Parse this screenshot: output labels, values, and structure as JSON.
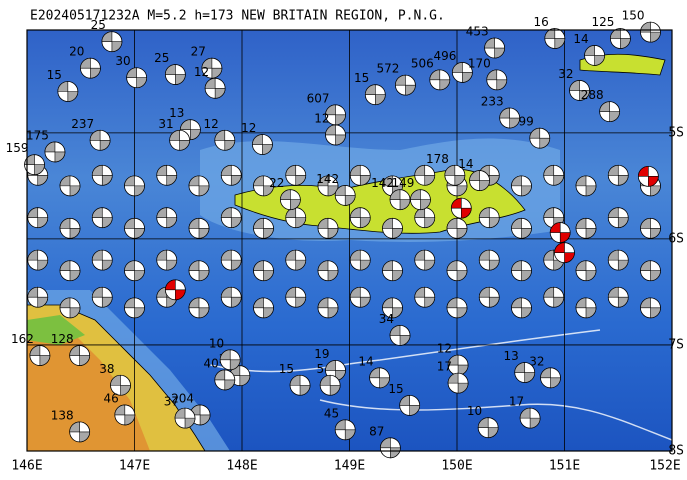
{
  "chart_data": {
    "type": "map",
    "title": "E202405171232A M=5.2 h=173 NEW BRITAIN REGION, P.N.G.",
    "xlim": [
      146,
      152
    ],
    "ylim": [
      -8,
      -4.03
    ],
    "xticks": [
      {
        "value": 146,
        "label": "146E"
      },
      {
        "value": 147,
        "label": "147E"
      },
      {
        "value": 148,
        "label": "148E"
      },
      {
        "value": 149,
        "label": "149E"
      },
      {
        "value": 150,
        "label": "150E"
      },
      {
        "value": 151,
        "label": "151E"
      },
      {
        "value": 152,
        "label": "152E"
      }
    ],
    "yticks": [
      {
        "value": -5,
        "label": "5S"
      },
      {
        "value": -6,
        "label": "6S"
      },
      {
        "value": -7,
        "label": "7S"
      },
      {
        "value": -8,
        "label": "8S"
      }
    ],
    "grid": true,
    "events": {
      "color": "#a8a8a8",
      "lon": [
        146.79,
        146.59,
        147.02,
        147.38,
        147.72,
        147.75,
        146.38,
        146.68,
        146.26,
        146.07,
        147.52,
        147.42,
        147.84,
        148.19,
        148.87,
        148.87,
        149.24,
        149.52,
        149.84,
        150.05,
        150.35,
        150.37,
        150.49,
        150.77,
        151.14,
        151.42,
        151.28,
        149.98,
        150.21,
        149.47,
        149.66,
        148.96,
        148.45,
        146.49,
        146.12,
        146.87,
        147.98,
        147.89,
        147.84,
        148.54,
        148.87,
        148.82,
        149.28,
        149.56,
        148.96,
        149.38,
        150.29,
        150.68,
        150.87,
        150.63,
        150.01,
        150.01,
        149.47,
        146.49,
        147.61,
        147.47,
        146.91,
        151.8,
        151.52,
        150.91
      ],
      "lat": [
        -4.14,
        -4.39,
        -4.48,
        -4.45,
        -4.39,
        -4.58,
        -4.61,
        -5.07,
        -5.18,
        -5.3,
        -4.97,
        -5.07,
        -5.07,
        -5.11,
        -4.83,
        -5.02,
        -4.64,
        -4.55,
        -4.5,
        -4.43,
        -4.2,
        -4.5,
        -4.86,
        -5.05,
        -4.6,
        -4.8,
        -4.27,
        -5.4,
        -5.45,
        -5.63,
        -5.63,
        -5.59,
        -5.63,
        -7.1,
        -7.1,
        -7.38,
        -7.29,
        -7.14,
        -7.33,
        -7.38,
        -7.24,
        -7.38,
        -7.31,
        -7.57,
        -7.8,
        -7.97,
        -7.78,
        -7.69,
        -7.31,
        -7.26,
        -7.19,
        -7.36,
        -6.91,
        -7.82,
        -7.66,
        -7.69,
        -7.66,
        -4.05,
        -4.11,
        -4.11
      ],
      "depth": [
        25,
        20,
        30,
        25,
        27,
        12,
        15,
        237,
        175,
        159,
        13,
        31,
        12,
        12,
        607,
        12,
        15,
        572,
        506,
        496,
        453,
        170,
        233,
        99,
        32,
        288,
        14,
        178,
        14,
        142,
        149,
        142,
        22,
        128,
        162,
        38,
        38,
        10,
        40,
        15,
        19,
        5,
        14,
        15,
        45,
        87,
        10,
        17,
        32,
        13,
        12,
        17,
        34,
        138,
        204,
        37,
        46,
        150,
        125,
        16
      ]
    },
    "events_unlabeled": {
      "color": "#a8a8a8",
      "lon": [
        146.1,
        146.4,
        146.7,
        147.0,
        147.3,
        147.6,
        147.9,
        148.2,
        148.5,
        148.8,
        149.1,
        149.4,
        149.7,
        150.0,
        150.3,
        150.6,
        150.9,
        151.2,
        151.5,
        151.8,
        146.1,
        146.4,
        146.7,
        147.0,
        147.3,
        147.6,
        147.9,
        148.2,
        148.5,
        148.8,
        149.1,
        149.4,
        149.7,
        150.0,
        150.3,
        150.6,
        150.9,
        151.2,
        151.5,
        151.8,
        146.1,
        146.4,
        146.7,
        147.0,
        147.3,
        147.6,
        147.9,
        148.2,
        148.5,
        148.8,
        149.1,
        149.4,
        149.7,
        150.0,
        150.3,
        150.6,
        150.9,
        151.2,
        151.5,
        151.8,
        146.1,
        146.4,
        146.7,
        147.0,
        147.3,
        147.6,
        147.9,
        148.2,
        148.5,
        148.8,
        149.1,
        149.4,
        149.7,
        150.0,
        150.3,
        150.6,
        150.9,
        151.2,
        151.5,
        151.8
      ],
      "lat": [
        -5.4,
        -5.5,
        -5.4,
        -5.5,
        -5.4,
        -5.5,
        -5.4,
        -5.5,
        -5.4,
        -5.5,
        -5.4,
        -5.5,
        -5.4,
        -5.5,
        -5.4,
        -5.5,
        -5.4,
        -5.5,
        -5.4,
        -5.5,
        -5.8,
        -5.9,
        -5.8,
        -5.9,
        -5.8,
        -5.9,
        -5.8,
        -5.9,
        -5.8,
        -5.9,
        -5.8,
        -5.9,
        -5.8,
        -5.9,
        -5.8,
        -5.9,
        -5.8,
        -5.9,
        -5.8,
        -5.9,
        -6.2,
        -6.3,
        -6.2,
        -6.3,
        -6.2,
        -6.3,
        -6.2,
        -6.3,
        -6.2,
        -6.3,
        -6.2,
        -6.3,
        -6.2,
        -6.3,
        -6.2,
        -6.3,
        -6.2,
        -6.3,
        -6.2,
        -6.3,
        -6.55,
        -6.65,
        -6.55,
        -6.65,
        -6.55,
        -6.65,
        -6.55,
        -6.65,
        -6.55,
        -6.65,
        -6.55,
        -6.65,
        -6.55,
        -6.65,
        -6.55,
        -6.65,
        -6.55,
        -6.65,
        -6.55,
        -6.65
      ]
    },
    "highlighted": {
      "color": "#e00000",
      "lon": [
        147.38,
        150.04,
        150.96,
        151.0,
        151.78
      ],
      "lat": [
        -6.48,
        -5.71,
        -5.94,
        -6.13,
        -5.41
      ]
    }
  }
}
